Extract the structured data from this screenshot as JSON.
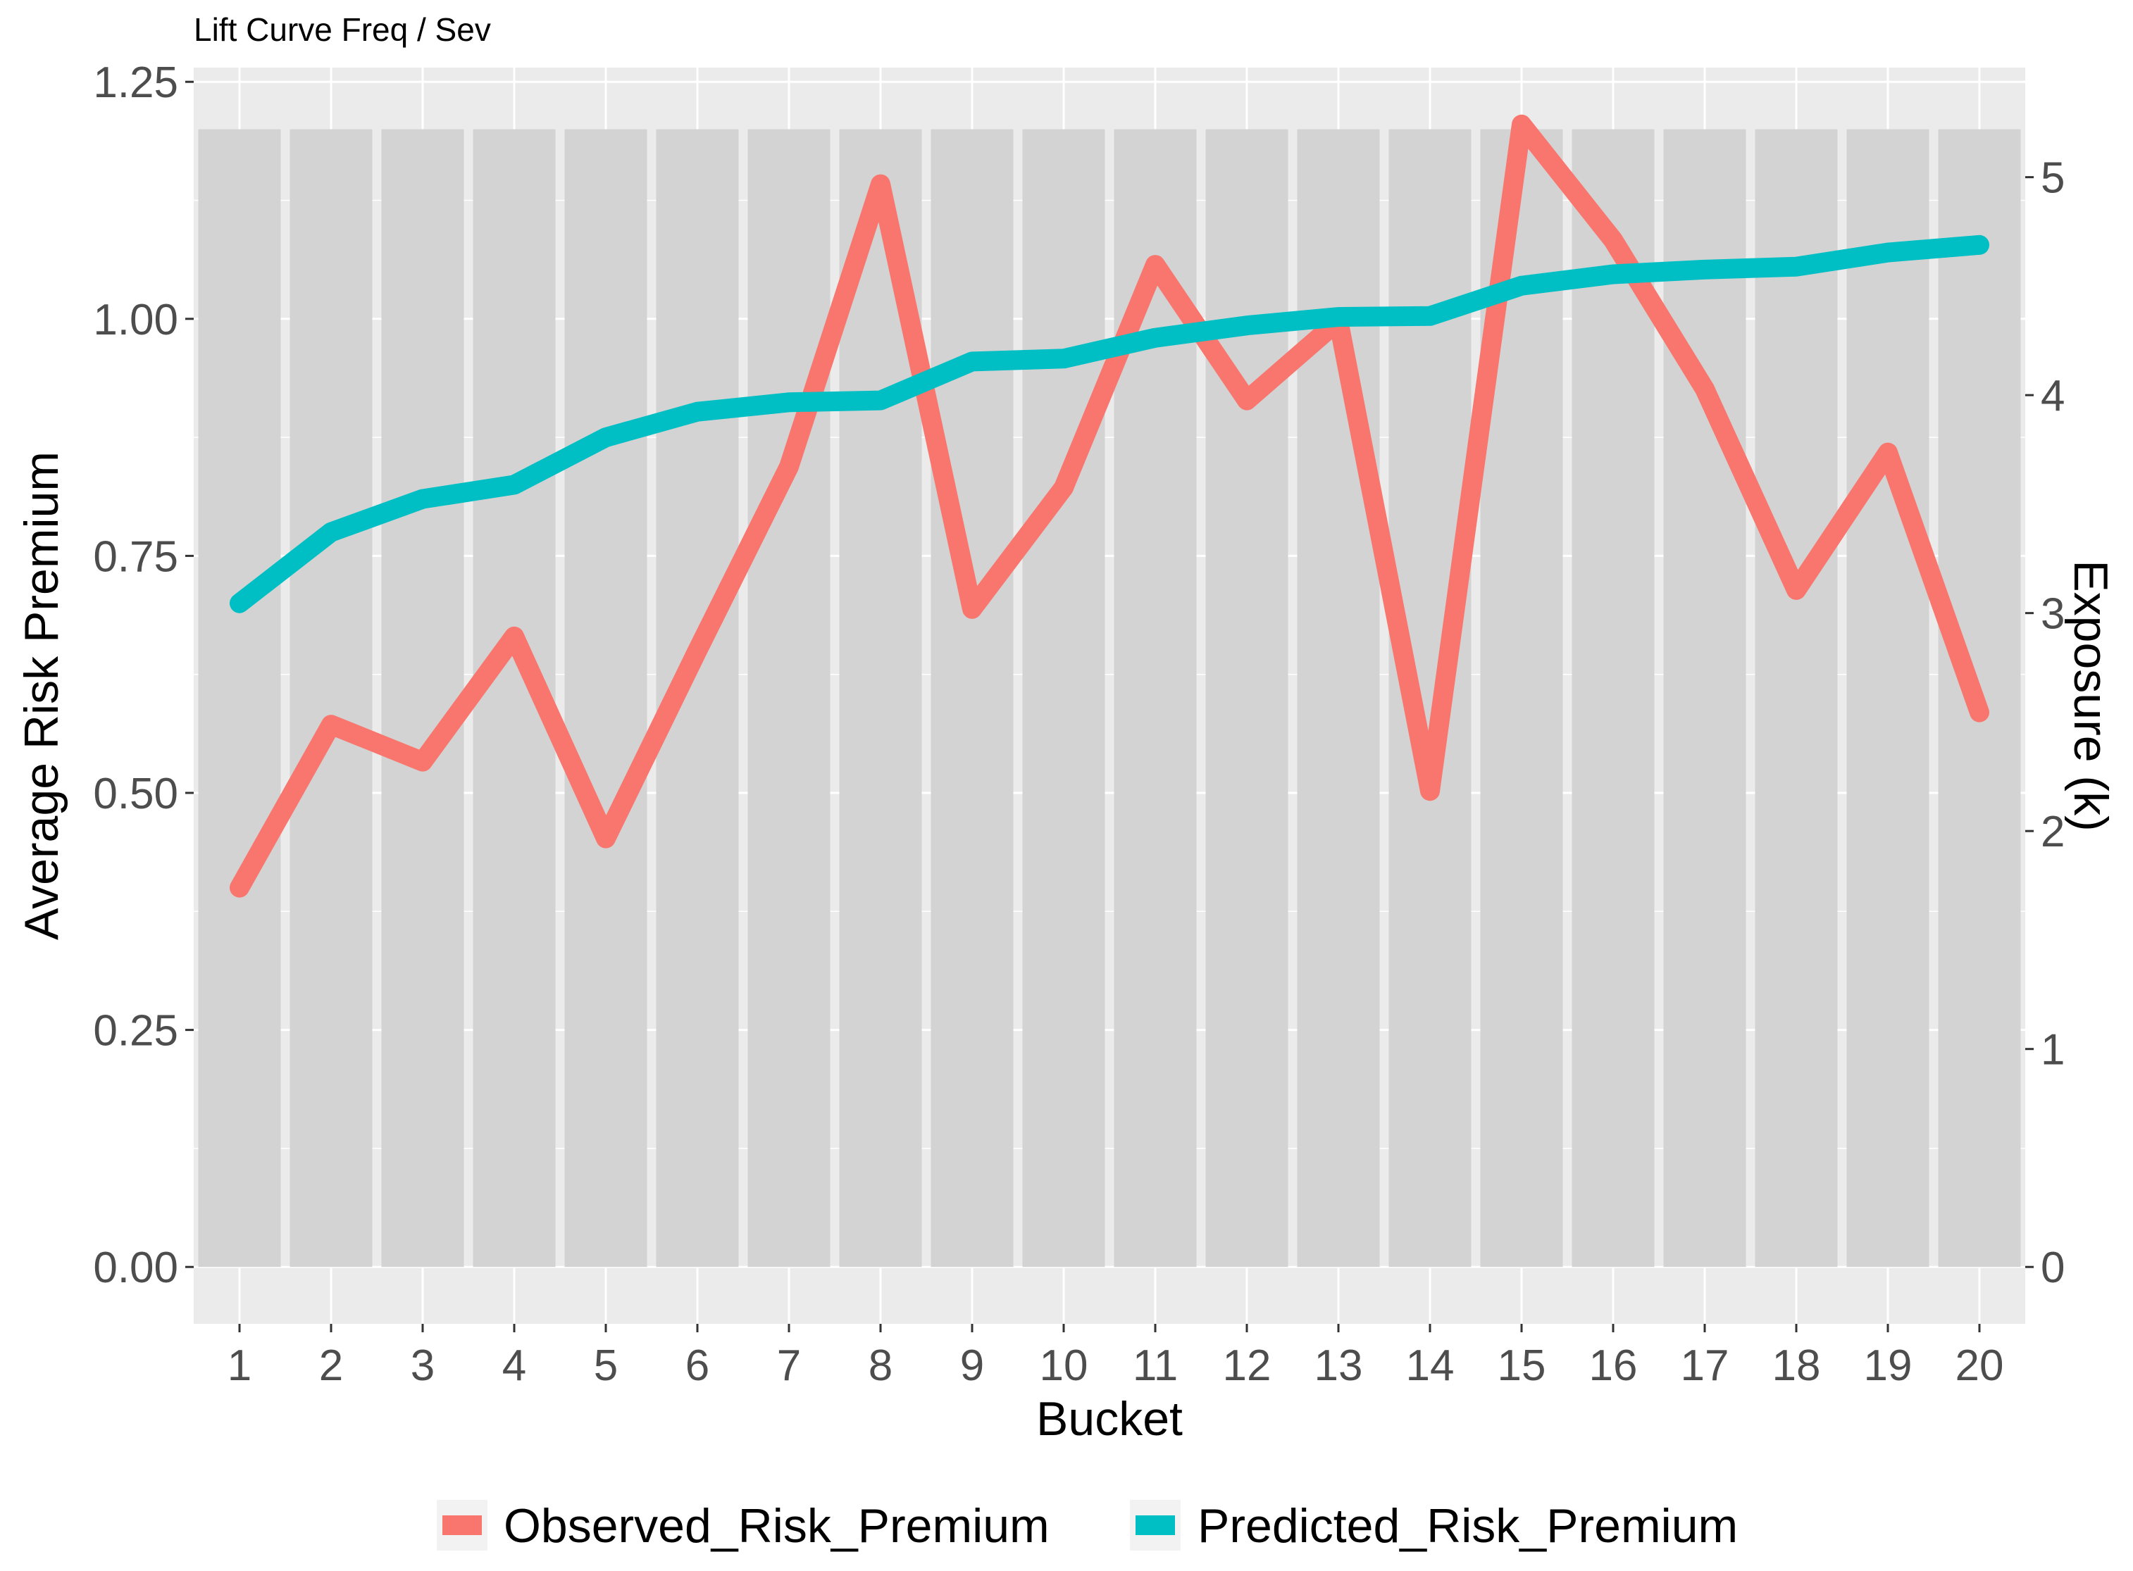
{
  "chart_data": {
    "type": "line",
    "title": "Lift Curve Freq / Sev",
    "xlabel": "Bucket",
    "ylabel": "Average Risk Premium",
    "y2label": "Exposure (k)",
    "categories": [
      "1",
      "2",
      "3",
      "4",
      "5",
      "6",
      "7",
      "8",
      "9",
      "10",
      "11",
      "12",
      "13",
      "14",
      "15",
      "16",
      "17",
      "18",
      "19",
      "20"
    ],
    "ylim": [
      -0.06,
      1.265
    ],
    "yticks": [
      "0.00",
      "0.25",
      "0.50",
      "0.75",
      "1.00",
      "1.25"
    ],
    "y2ticks": [
      "0",
      "1",
      "2",
      "3",
      "4",
      "5"
    ],
    "y2_per_y": 4.35,
    "bars": {
      "name": "Exposure (k)",
      "values": [
        5.22,
        5.22,
        5.22,
        5.22,
        5.22,
        5.22,
        5.22,
        5.22,
        5.22,
        5.22,
        5.22,
        5.22,
        5.22,
        5.22,
        5.22,
        5.22,
        5.22,
        5.22,
        5.22,
        5.22
      ],
      "color": "#d3d3d3"
    },
    "series": [
      {
        "name": "Observed_Risk_Premium",
        "color": "#f8766d",
        "values": [
          0.4,
          0.572,
          0.533,
          0.665,
          0.452,
          0.65,
          0.844,
          1.142,
          0.694,
          0.822,
          1.057,
          0.914,
          0.998,
          0.502,
          1.205,
          1.083,
          0.926,
          0.714,
          0.859,
          0.585
        ]
      },
      {
        "name": "Predicted_Risk_Premium",
        "color": "#00bfc4",
        "values": [
          0.7,
          0.775,
          0.81,
          0.825,
          0.875,
          0.902,
          0.912,
          0.914,
          0.955,
          0.958,
          0.98,
          0.993,
          1.002,
          1.003,
          1.035,
          1.047,
          1.052,
          1.055,
          1.07,
          1.078
        ]
      }
    ],
    "grid": true,
    "legend": "bottom"
  }
}
